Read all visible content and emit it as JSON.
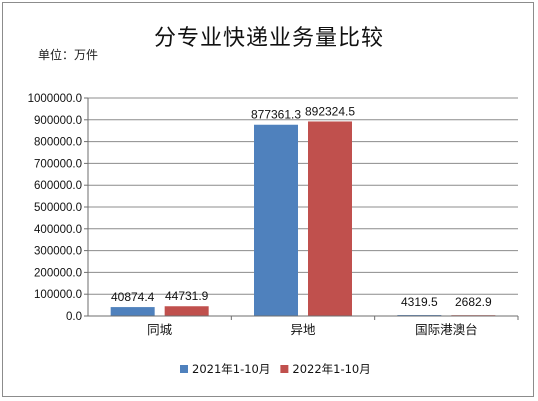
{
  "chart_data": {
    "type": "bar",
    "title": "分专业快递业务量比较",
    "unit_label": "单位：万件",
    "categories": [
      "同城",
      "异地",
      "国际港澳台"
    ],
    "series": [
      {
        "name": "2021年1-10月",
        "color": "#4f81bd",
        "values": [
          40874.4,
          877361.3,
          4319.5
        ],
        "labels": [
          "40874.4",
          "877361.3",
          "4319.5"
        ]
      },
      {
        "name": "2022年1-10月",
        "color": "#c0504d",
        "values": [
          44731.9,
          892324.5,
          2682.9
        ],
        "labels": [
          "44731.9",
          "892324.5",
          "2682.9"
        ]
      }
    ],
    "ylim": [
      0,
      1000000
    ],
    "yticks": [
      0,
      100000,
      200000,
      300000,
      400000,
      500000,
      600000,
      700000,
      800000,
      900000,
      1000000
    ],
    "ytick_labels": [
      "0.0",
      "100000.0",
      "200000.0",
      "300000.0",
      "400000.0",
      "500000.0",
      "600000.0",
      "700000.0",
      "800000.0",
      "900000.0",
      "1000000.0"
    ],
    "grid": true,
    "legend_position": "bottom"
  }
}
